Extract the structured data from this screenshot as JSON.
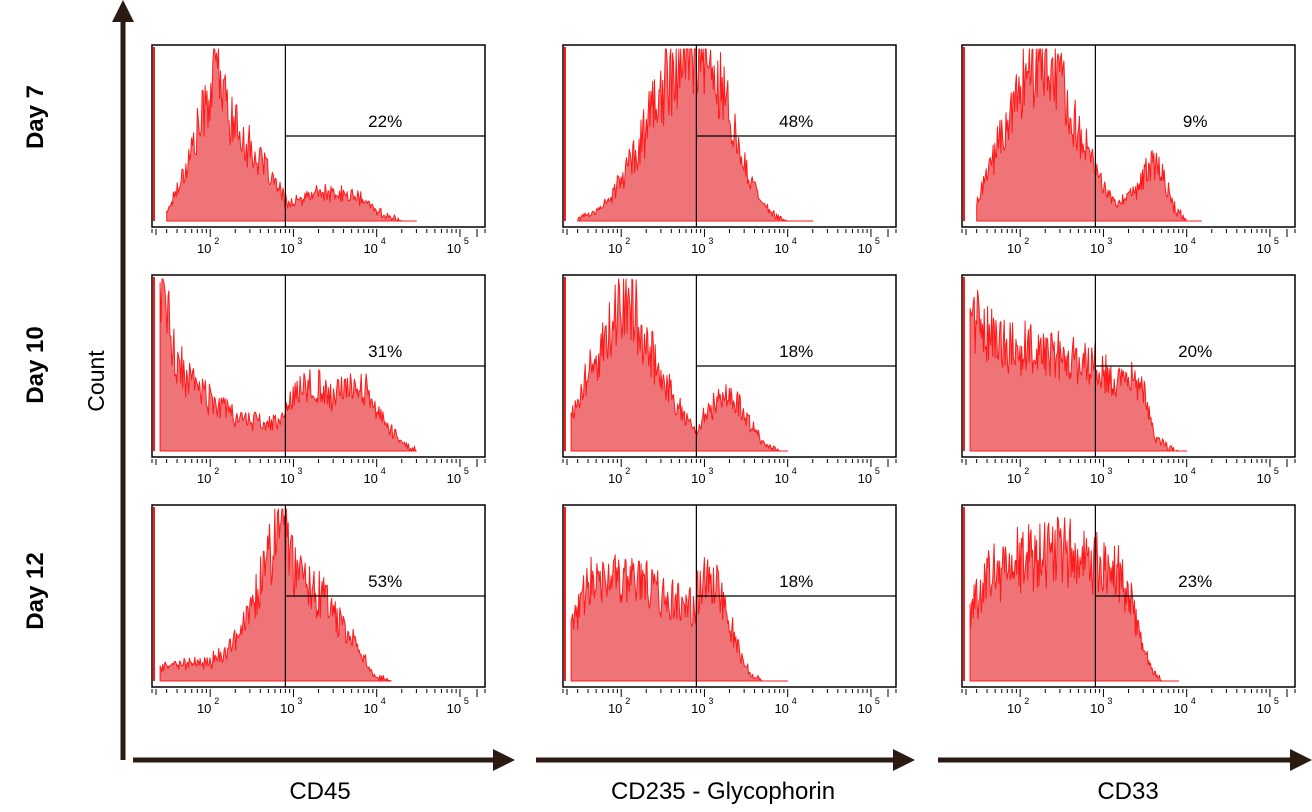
{
  "figure": {
    "y_axis_label": "Count",
    "row_labels": [
      "Day 7",
      "Day 10",
      "Day 12"
    ],
    "column_labels": [
      "CD45",
      "CD235 - Glycophorin",
      "CD33"
    ],
    "tick_labels": [
      "10",
      "10",
      "10",
      "10"
    ],
    "tick_exponents": [
      "2",
      "3",
      "4",
      "5"
    ],
    "colors": {
      "fill": "#ee7478",
      "stroke": "#ff1a1a",
      "axis": "#2a1a12",
      "frame": "#000000"
    }
  },
  "chart_data": [
    {
      "type": "area",
      "row": "Day 7",
      "marker": "CD45",
      "x_scale": "log",
      "xlim": [
        20,
        200000
      ],
      "gate_start": 800,
      "gate_percent": "22%",
      "x": [
        30,
        50,
        80,
        100,
        120,
        150,
        200,
        300,
        500,
        800,
        1000,
        1500,
        2000,
        3000,
        5000,
        8000,
        10000,
        15000,
        20000,
        30000
      ],
      "y": [
        5,
        30,
        60,
        75,
        95,
        70,
        55,
        42,
        28,
        12,
        10,
        14,
        17,
        15,
        15,
        10,
        6,
        2,
        0,
        0
      ]
    },
    {
      "type": "area",
      "row": "Day 7",
      "marker": "CD235 - Glycophorin",
      "x_scale": "log",
      "xlim": [
        20,
        200000
      ],
      "gate_start": 800,
      "gate_percent": "48%",
      "x": [
        30,
        50,
        80,
        100,
        150,
        200,
        300,
        500,
        700,
        1000,
        1500,
        2000,
        3000,
        5000,
        7000,
        10000,
        20000
      ],
      "y": [
        2,
        6,
        15,
        25,
        40,
        55,
        75,
        92,
        100,
        95,
        80,
        62,
        35,
        10,
        3,
        0,
        0
      ]
    },
    {
      "type": "area",
      "row": "Day 7",
      "marker": "CD33",
      "x_scale": "log",
      "xlim": [
        20,
        200000
      ],
      "gate_start": 800,
      "gate_percent": "9%",
      "x": [
        30,
        50,
        80,
        100,
        150,
        200,
        300,
        500,
        800,
        1000,
        1500,
        2000,
        3000,
        4000,
        5000,
        7000,
        10000,
        15000
      ],
      "y": [
        10,
        40,
        65,
        80,
        92,
        95,
        78,
        55,
        30,
        18,
        10,
        13,
        25,
        33,
        28,
        8,
        0,
        0
      ]
    },
    {
      "type": "area",
      "row": "Day 10",
      "marker": "CD45",
      "x_scale": "log",
      "xlim": [
        20,
        200000
      ],
      "gate_start": 800,
      "gate_percent": "31%",
      "x": [
        25,
        40,
        60,
        100,
        200,
        300,
        500,
        800,
        1000,
        1500,
        2000,
        3000,
        5000,
        8000,
        10000,
        15000,
        20000,
        30000
      ],
      "y": [
        100,
        50,
        40,
        30,
        20,
        18,
        15,
        20,
        35,
        40,
        38,
        30,
        40,
        35,
        25,
        12,
        5,
        0
      ]
    },
    {
      "type": "area",
      "row": "Day 10",
      "marker": "CD235 - Glycophorin",
      "x_scale": "log",
      "xlim": [
        20,
        200000
      ],
      "gate_start": 800,
      "gate_percent": "18%",
      "x": [
        25,
        40,
        60,
        80,
        100,
        150,
        200,
        300,
        500,
        800,
        1000,
        1500,
        2000,
        3000,
        5000,
        8000,
        10000
      ],
      "y": [
        20,
        45,
        60,
        75,
        90,
        80,
        65,
        45,
        25,
        10,
        20,
        30,
        35,
        22,
        5,
        0,
        0
      ]
    },
    {
      "type": "area",
      "row": "Day 10",
      "marker": "CD33",
      "x_scale": "log",
      "xlim": [
        20,
        200000
      ],
      "gate_start": 800,
      "gate_percent": "20%",
      "x": [
        25,
        40,
        60,
        100,
        200,
        300,
        500,
        800,
        1000,
        1500,
        2000,
        3000,
        4000,
        6000,
        8000,
        10000
      ],
      "y": [
        80,
        70,
        60,
        60,
        55,
        55,
        50,
        50,
        45,
        40,
        45,
        40,
        10,
        2,
        0,
        0
      ]
    },
    {
      "type": "area",
      "row": "Day 12",
      "marker": "CD45",
      "x_scale": "log",
      "xlim": [
        20,
        200000
      ],
      "gate_start": 800,
      "gate_percent": "53%",
      "x": [
        25,
        40,
        60,
        100,
        150,
        200,
        300,
        400,
        500,
        700,
        800,
        1000,
        1500,
        2000,
        3000,
        5000,
        8000,
        10000,
        15000
      ],
      "y": [
        8,
        10,
        10,
        12,
        15,
        25,
        40,
        55,
        70,
        90,
        85,
        70,
        55,
        50,
        40,
        25,
        8,
        2,
        0
      ]
    },
    {
      "type": "area",
      "row": "Day 12",
      "marker": "CD235 - Glycophorin",
      "x_scale": "log",
      "xlim": [
        20,
        200000
      ],
      "gate_start": 800,
      "gate_percent": "18%",
      "x": [
        25,
        40,
        60,
        100,
        150,
        200,
        300,
        500,
        700,
        1000,
        1500,
        2000,
        3000,
        4000,
        5000,
        10000
      ],
      "y": [
        30,
        55,
        60,
        58,
        55,
        55,
        50,
        48,
        42,
        60,
        55,
        35,
        10,
        2,
        0,
        0
      ]
    },
    {
      "type": "area",
      "row": "Day 12",
      "marker": "CD33",
      "x_scale": "log",
      "xlim": [
        20,
        200000
      ],
      "gate_start": 800,
      "gate_percent": "23%",
      "x": [
        25,
        40,
        60,
        100,
        150,
        200,
        300,
        500,
        700,
        1000,
        1500,
        2000,
        3000,
        4000,
        5000,
        8000
      ],
      "y": [
        40,
        60,
        65,
        70,
        72,
        75,
        80,
        70,
        65,
        70,
        62,
        50,
        20,
        5,
        0,
        0
      ]
    }
  ]
}
